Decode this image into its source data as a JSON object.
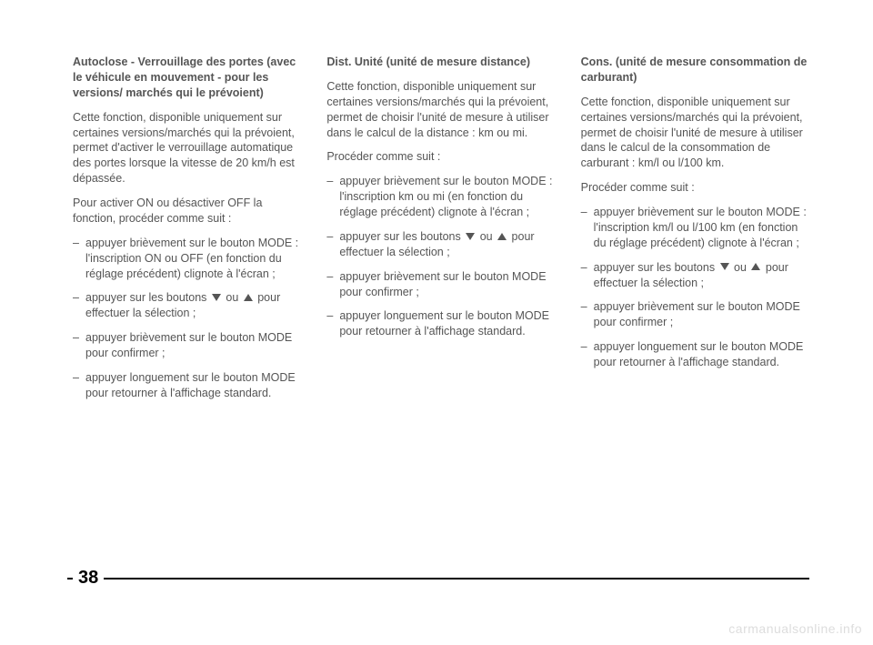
{
  "col1": {
    "heading": "Autoclose - Verrouillage des portes (avec le véhicule en mouvement - pour les versions/ marchés qui le prévoient)",
    "p1": "Cette fonction, disponible uniquement sur certaines versions/marchés qui la prévoient, permet d'activer le verrouillage automatique des portes lorsque la vitesse de 20 km/h est dépassée.",
    "p2": "Pour activer ON ou désactiver OFF la fonction, procéder comme suit :",
    "li1": "appuyer brièvement sur le bouton MODE : l'inscription ON ou OFF (en fonction du réglage précédent) clignote à l'écran ;",
    "li2a": "appuyer sur les boutons ",
    "li2b": " ou ",
    "li2c": " pour effectuer la sélection ;",
    "li3": "appuyer brièvement sur le bouton MODE pour confirmer ;",
    "li4": "appuyer longuement sur le bouton MODE pour retourner à l'affichage standard."
  },
  "col2": {
    "heading": "Dist. Unité (unité de mesure distance)",
    "p1": "Cette fonction, disponible uniquement sur certaines versions/marchés qui la prévoient, permet de choisir l'unité de mesure à utiliser dans le calcul de la distance : km ou mi.",
    "p2": "Procéder comme suit :",
    "li1": "appuyer brièvement sur le bouton MODE : l'inscription km ou mi (en fonction du réglage précédent) clignote à l'écran ;",
    "li2a": "appuyer sur les boutons ",
    "li2b": " ou ",
    "li2c": " pour effectuer la sélection ;",
    "li3": "appuyer brièvement sur le bouton MODE pour confirmer ;",
    "li4": "appuyer longuement sur le bouton MODE pour retourner à l'affichage standard."
  },
  "col3": {
    "heading": "Cons. (unité de mesure consommation de carburant)",
    "p1": "Cette fonction, disponible uniquement sur certaines versions/marchés qui la prévoient, permet de choisir l'unité de mesure à utiliser dans le calcul de la consommation de carburant : km/l ou l/100 km.",
    "p2": "Procéder comme suit :",
    "li1": "appuyer brièvement sur le bouton MODE : l'inscription km/l ou l/100 km (en fonction du réglage précédent) clignote à l'écran ;",
    "li2a": "appuyer sur les boutons ",
    "li2b": " ou ",
    "li2c": " pour effectuer la sélection ;",
    "li3": "appuyer brièvement sur le bouton MODE pour confirmer ;",
    "li4": "appuyer longuement sur le bouton MODE pour retourner à l'affichage standard."
  },
  "page_number": "38",
  "watermark": "carmanualsonline.info"
}
